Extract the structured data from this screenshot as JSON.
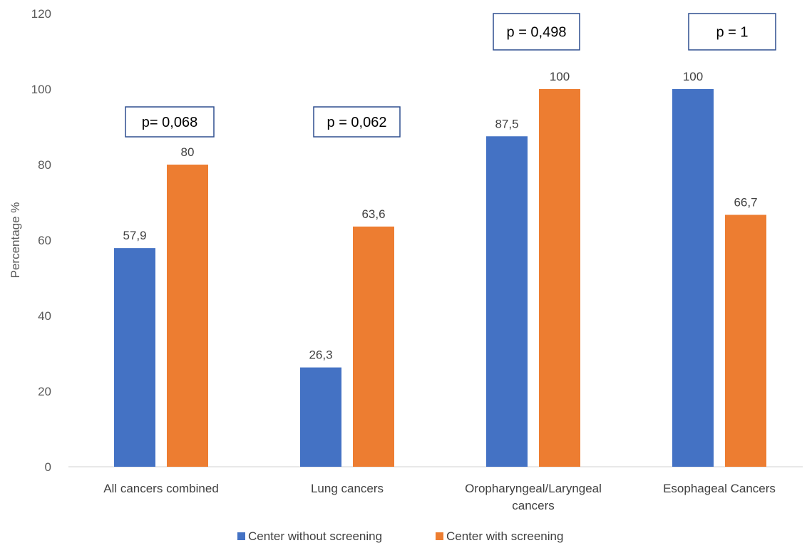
{
  "chart_data": {
    "type": "bar",
    "categories": [
      [
        "All cancers combined"
      ],
      [
        "Lung cancers"
      ],
      [
        "Oropharyngeal/Laryngeal",
        "cancers"
      ],
      [
        "Esophageal Cancers"
      ]
    ],
    "series": [
      {
        "name": "Center without screening",
        "color": "#4472C4",
        "values": [
          57.9,
          26.3,
          87.5,
          100
        ]
      },
      {
        "name": "Center with screening",
        "color": "#ED7D31",
        "values": [
          80,
          63.6,
          100,
          66.7
        ]
      }
    ],
    "data_labels": [
      [
        "57,9",
        "26,3",
        "87,5",
        "100"
      ],
      [
        "80",
        "63,6",
        "100",
        "66,7"
      ]
    ],
    "p_values": [
      "p= 0,068",
      "p = 0,062",
      "p = 0,498",
      "p = 1"
    ],
    "p_box_color": "#2F4F8F",
    "ylabel": "Percentage %",
    "ylim": [
      0,
      120
    ],
    "yticks": [
      0,
      20,
      40,
      60,
      80,
      100,
      120
    ],
    "grid": false,
    "legend_position": "bottom"
  }
}
